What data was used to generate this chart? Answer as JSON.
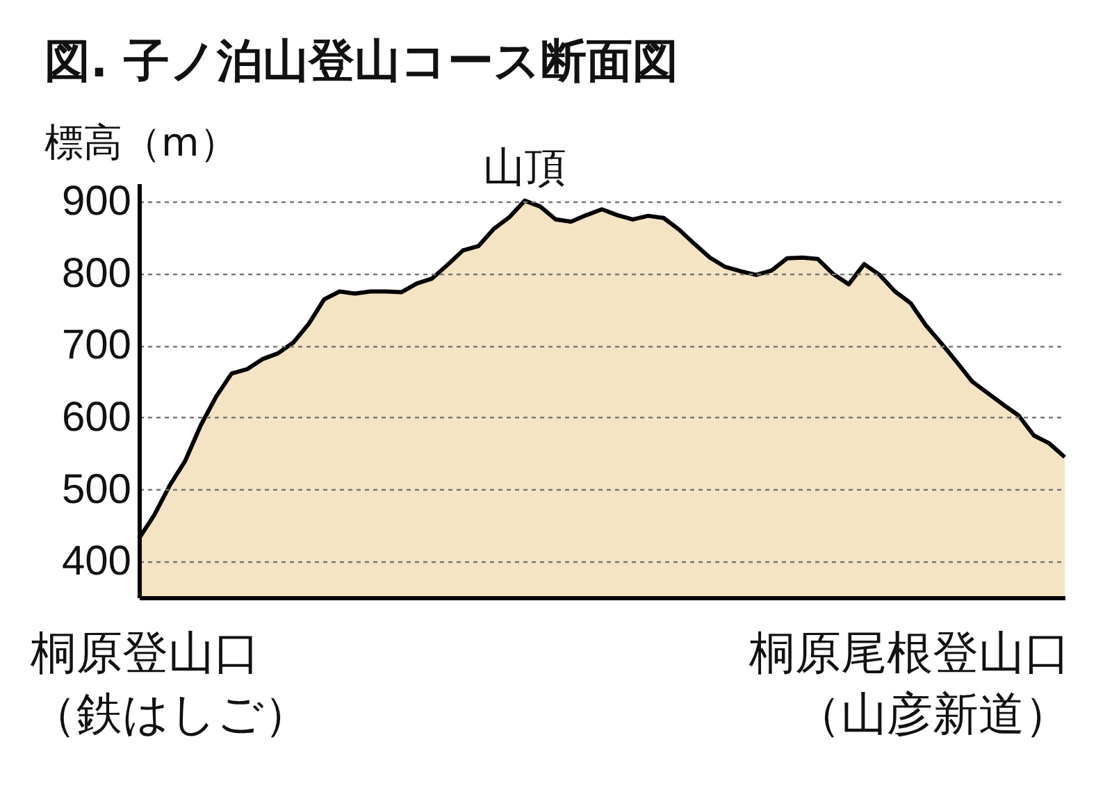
{
  "chart_data": {
    "type": "area",
    "title": "図. 子ノ泊山登山コース断面図",
    "ylabel": "標高（m）",
    "categories": [
      null,
      null,
      null,
      null,
      null,
      null,
      null,
      null,
      null,
      null,
      null,
      null,
      null,
      null,
      null,
      null,
      null,
      null,
      null,
      null,
      null,
      null,
      null,
      null,
      null,
      null,
      null,
      null,
      null,
      null,
      null,
      null,
      null,
      null,
      null,
      null,
      null,
      null,
      null,
      null,
      null,
      null,
      null,
      null,
      null,
      null,
      null,
      null,
      null,
      null,
      null,
      null,
      null,
      null,
      null,
      null,
      null,
      null,
      null,
      null,
      null
    ],
    "series": [
      {
        "color": "#efd8a9",
        "values": [
          432,
          465,
          506,
          540,
          589,
          629,
          661,
          667,
          681,
          689,
          704,
          730,
          764,
          775,
          772,
          775,
          775,
          774,
          786,
          793,
          812,
          832,
          838,
          862,
          878,
          901,
          893,
          875,
          872,
          881,
          889,
          881,
          875,
          880,
          877,
          861,
          841,
          822,
          809,
          803,
          798,
          804,
          821,
          822,
          820,
          799,
          785,
          813,
          798,
          775,
          759,
          728,
          703,
          677,
          650,
          634,
          618,
          603,
          575,
          564,
          545
        ]
      }
    ],
    "ylim": [
      350,
      925
    ],
    "yticks": [
      400,
      500,
      600,
      700,
      800,
      900
    ],
    "grid": "y",
    "annotations": [
      {
        "text": "山頂",
        "y": 901
      },
      "桐原登山口",
      "（鉄はしご）",
      "桐原尾根登山口",
      "（山彦新道）"
    ]
  }
}
